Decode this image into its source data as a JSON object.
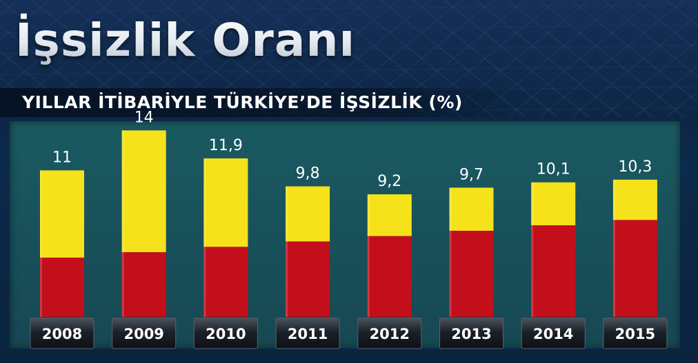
{
  "title": "İşsizlik Oranı",
  "subtitle": "YILLAR İTİBARİYLE TÜRKİYE’DE İŞSİZLİK (%)",
  "chart_data": {
    "type": "bar",
    "title": "İşsizlik Oranı",
    "subtitle": "YILLAR İTİBARİYLE TÜRKİYE’DE İŞSİZLİK (%)",
    "categories": [
      "2008",
      "2009",
      "2010",
      "2011",
      "2012",
      "2013",
      "2014",
      "2015"
    ],
    "values": [
      11,
      14,
      11.9,
      9.8,
      9.2,
      9.7,
      10.1,
      10.3
    ],
    "value_labels": [
      "11",
      "14",
      "11,9",
      "9,8",
      "9,2",
      "9,7",
      "10,1",
      "10,3"
    ],
    "xlabel": "",
    "ylabel": "",
    "ylim": [
      0,
      15
    ],
    "grid": false,
    "legend": "none",
    "colors": {
      "bar_top": "#f5e21b",
      "bar_bottom": "#c20f1b",
      "panel": "#1b5a62",
      "label_plate": "#2a3038"
    }
  }
}
